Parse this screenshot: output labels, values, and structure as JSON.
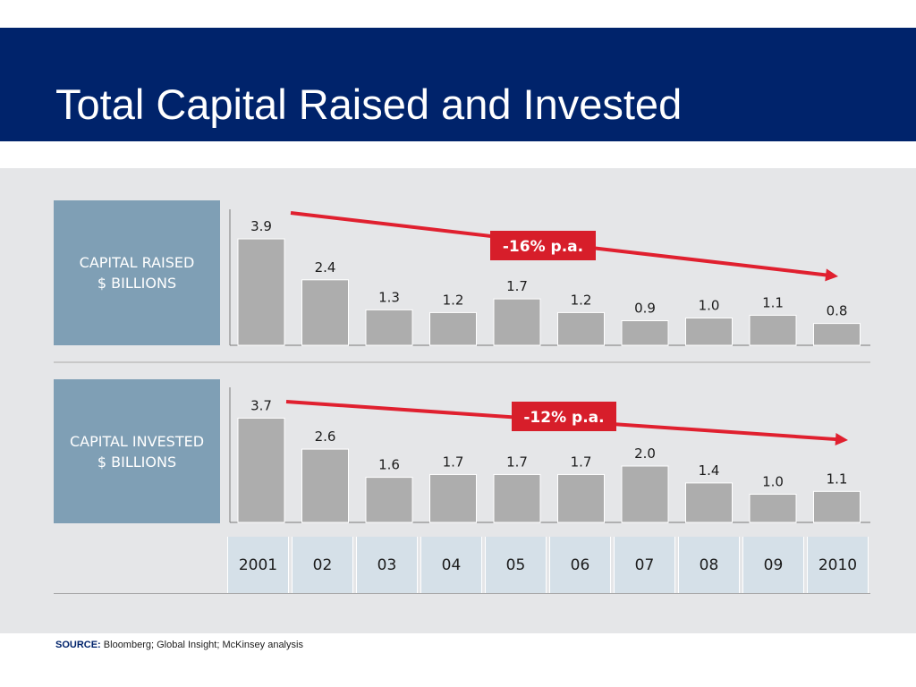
{
  "title": "Total Capital Raised and Invested",
  "source_label": "SOURCE:",
  "source_text": " Bloomberg; Global Insight; McKinsey analysis",
  "colors": {
    "title_bar": "#00236b",
    "label_box": "#7f9fb5",
    "bar": "#adadad",
    "trend": "#e0202f",
    "year_cell": "#d5e0e8"
  },
  "chart_data": [
    {
      "type": "bar",
      "label_lines": [
        "CAPITAL RAISED",
        "$ BILLIONS"
      ],
      "categories": [
        "2001",
        "02",
        "03",
        "04",
        "05",
        "06",
        "07",
        "08",
        "09",
        "2010"
      ],
      "values": [
        3.9,
        2.4,
        1.3,
        1.2,
        1.7,
        1.2,
        0.9,
        1.0,
        1.1,
        0.8
      ],
      "value_labels": [
        "3.9",
        "2.4",
        "1.3",
        "1.2",
        "1.7",
        "1.2",
        "0.9",
        "1.0",
        "1.1",
        "0.8"
      ],
      "annotation": "-16% p.a."
    },
    {
      "type": "bar",
      "label_lines": [
        "CAPITAL INVESTED",
        "$ BILLIONS"
      ],
      "categories": [
        "2001",
        "02",
        "03",
        "04",
        "05",
        "06",
        "07",
        "08",
        "09",
        "2010"
      ],
      "values": [
        3.7,
        2.6,
        1.6,
        1.7,
        1.7,
        1.7,
        2.0,
        1.4,
        1.0,
        1.1
      ],
      "value_labels": [
        "3.7",
        "2.6",
        "1.6",
        "1.7",
        "1.7",
        "1.7",
        "2.0",
        "1.4",
        "1.0",
        "1.1"
      ],
      "annotation": "-12% p.a."
    }
  ]
}
